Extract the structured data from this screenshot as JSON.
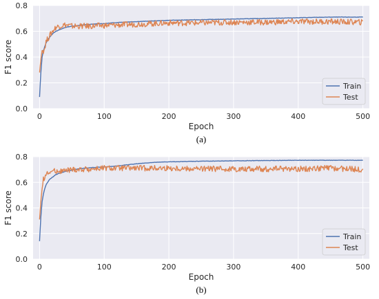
{
  "colors": {
    "train": "#4c72b0",
    "test": "#dd8452",
    "plot_bg": "#eaeaf2",
    "grid": "#ffffff"
  },
  "chart_data": [
    {
      "type": "line",
      "caption": "(a)",
      "xlabel": "Epoch",
      "ylabel": "F1 score",
      "xlim": [
        -10,
        510
      ],
      "ylim": [
        0.0,
        0.8
      ],
      "xticks": [
        "0",
        "100",
        "200",
        "300",
        "400",
        "500"
      ],
      "yticks": [
        "0.0",
        "0.2",
        "0.4",
        "0.6",
        "0.8"
      ],
      "grid": true,
      "legend": "lower-right",
      "x": [
        0,
        2,
        4,
        6,
        8,
        10,
        15,
        20,
        25,
        30,
        40,
        50,
        60,
        80,
        100,
        125,
        150,
        175,
        200,
        250,
        300,
        350,
        400,
        450,
        500
      ],
      "series": [
        {
          "name": "Train",
          "values": [
            0.09,
            0.28,
            0.4,
            0.45,
            0.48,
            0.51,
            0.55,
            0.58,
            0.6,
            0.61,
            0.63,
            0.64,
            0.645,
            0.655,
            0.66,
            0.67,
            0.675,
            0.68,
            0.685,
            0.69,
            0.695,
            0.7,
            0.705,
            0.71,
            0.71
          ]
        },
        {
          "name": "Test",
          "values": [
            0.28,
            0.38,
            0.45,
            0.45,
            0.47,
            0.52,
            0.56,
            0.6,
            0.63,
            0.64,
            0.65,
            0.64,
            0.64,
            0.64,
            0.645,
            0.65,
            0.655,
            0.66,
            0.665,
            0.665,
            0.67,
            0.67,
            0.675,
            0.675,
            0.67
          ]
        }
      ]
    },
    {
      "type": "line",
      "caption": "(b)",
      "xlabel": "Epoch",
      "ylabel": "F1 score",
      "xlim": [
        -10,
        510
      ],
      "ylim": [
        0.0,
        0.8
      ],
      "xticks": [
        "0",
        "100",
        "200",
        "300",
        "400",
        "500"
      ],
      "yticks": [
        "0.0",
        "0.2",
        "0.4",
        "0.6",
        "0.8"
      ],
      "grid": true,
      "legend": "lower-right",
      "x": [
        0,
        2,
        4,
        6,
        8,
        10,
        15,
        20,
        25,
        30,
        40,
        50,
        60,
        80,
        100,
        125,
        150,
        175,
        200,
        250,
        300,
        350,
        400,
        450,
        500
      ],
      "series": [
        {
          "name": "Train",
          "values": [
            0.14,
            0.33,
            0.45,
            0.51,
            0.55,
            0.58,
            0.62,
            0.64,
            0.66,
            0.67,
            0.685,
            0.695,
            0.705,
            0.715,
            0.72,
            0.73,
            0.745,
            0.755,
            0.76,
            0.765,
            0.768,
            0.77,
            0.772,
            0.772,
            0.772
          ]
        },
        {
          "name": "Test",
          "values": [
            0.31,
            0.45,
            0.55,
            0.62,
            0.65,
            0.66,
            0.68,
            0.685,
            0.69,
            0.69,
            0.69,
            0.7,
            0.7,
            0.705,
            0.71,
            0.71,
            0.71,
            0.71,
            0.71,
            0.705,
            0.705,
            0.705,
            0.705,
            0.71,
            0.7
          ]
        }
      ]
    }
  ]
}
